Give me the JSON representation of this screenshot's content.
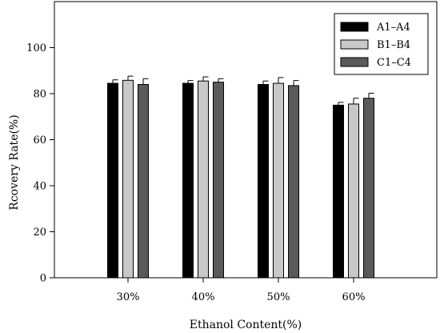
{
  "chart_data": {
    "type": "bar",
    "title": "",
    "xlabel": "Ethanol Content(%)",
    "ylabel": "Rcovery Rate(%)",
    "ylim": [
      0,
      120
    ],
    "yticks": [
      0,
      20,
      40,
      60,
      80,
      100
    ],
    "categories": [
      "30%",
      "40%",
      "50%",
      "60%"
    ],
    "legend_position": "top-right",
    "series": [
      {
        "name": "A1–A4",
        "color": "#000000",
        "values": [
          84.5,
          84.5,
          84.0,
          75.0
        ],
        "errors": [
          1.5,
          1.2,
          1.5,
          1.2
        ]
      },
      {
        "name": "B1–B4",
        "color": "#c8c8c8",
        "values": [
          85.8,
          85.5,
          84.5,
          75.5
        ],
        "errors": [
          1.8,
          1.8,
          2.5,
          2.5
        ]
      },
      {
        "name": "C1–C4",
        "color": "#5a5a5a",
        "values": [
          84.0,
          85.0,
          83.5,
          78.0
        ],
        "errors": [
          2.5,
          1.5,
          2.2,
          2.2
        ]
      }
    ]
  }
}
